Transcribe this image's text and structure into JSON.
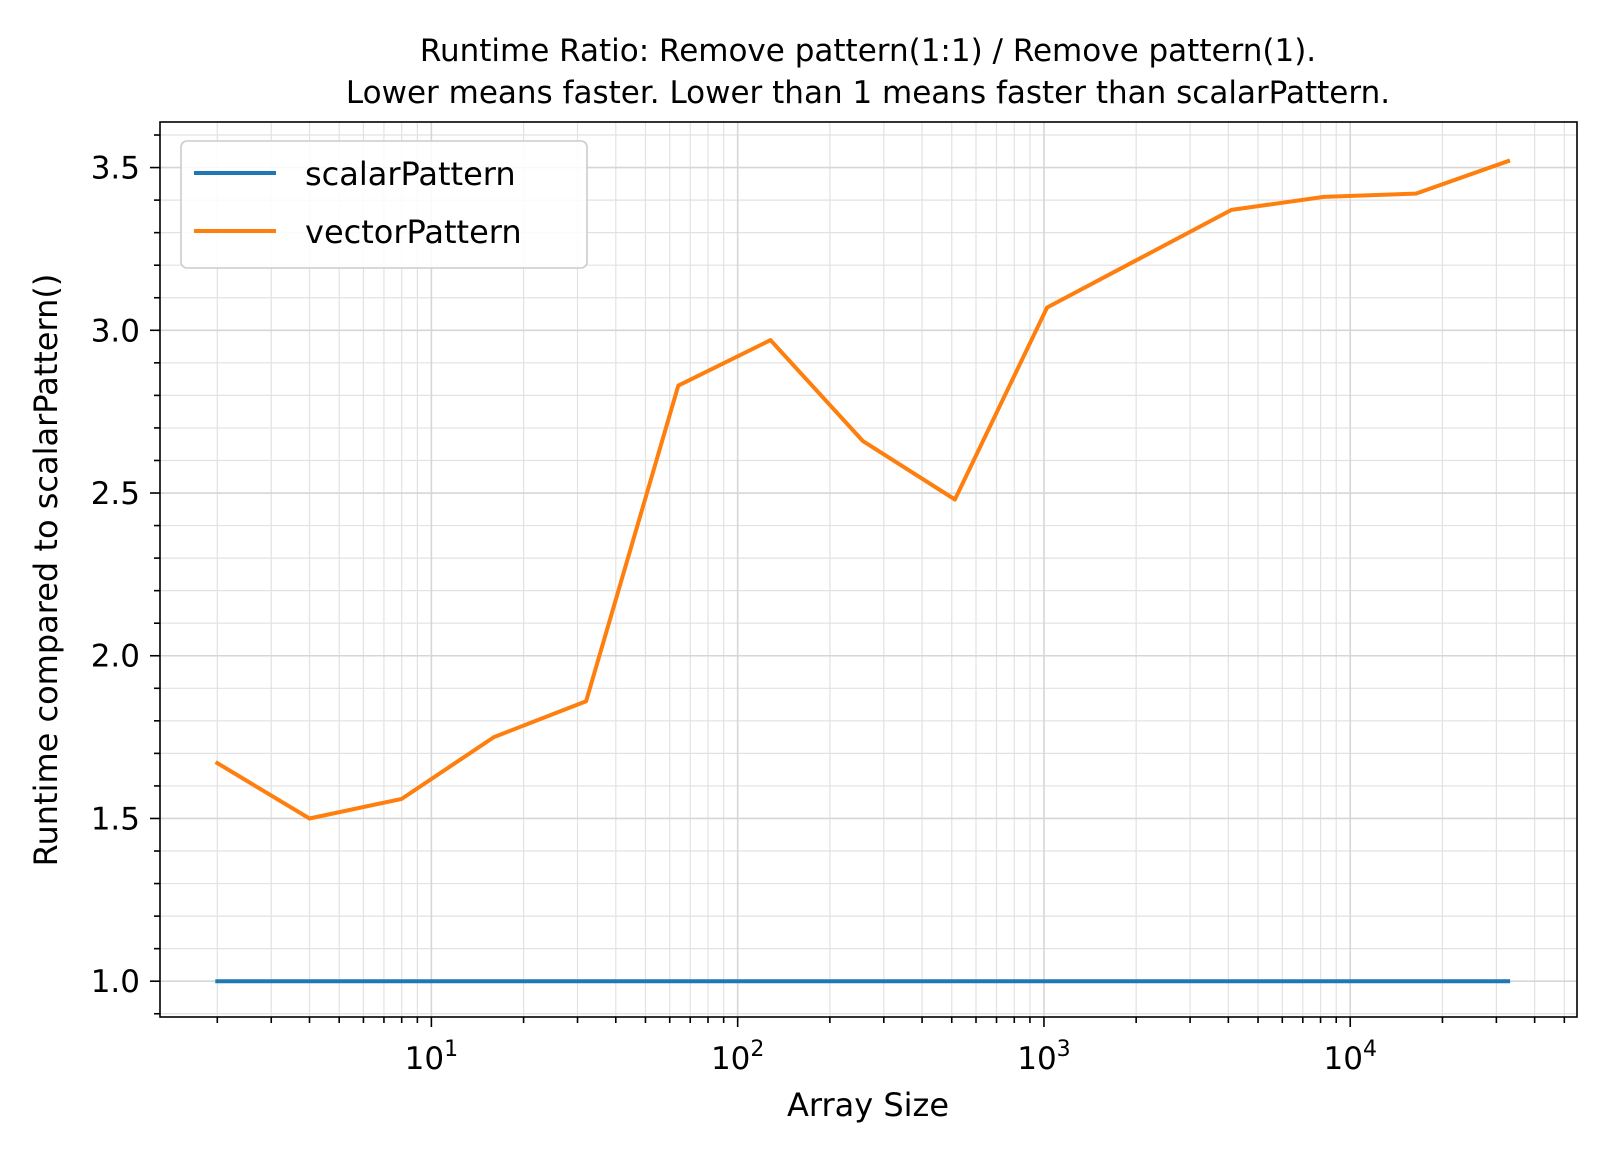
{
  "chart_data": {
    "type": "line",
    "title": [
      "Runtime Ratio: Remove pattern(1:1) / Remove pattern(1).",
      "Lower means faster. Lower than 1 means faster than scalarPattern."
    ],
    "xlabel": "Array Size",
    "ylabel": "Runtime compared to scalarPattern()",
    "xscale": "log",
    "xlim": [
      1.3,
      55000
    ],
    "ylim": [
      0.89,
      3.64
    ],
    "x_ticks": [
      {
        "value": 10,
        "base": "10",
        "exp": "1"
      },
      {
        "value": 100,
        "base": "10",
        "exp": "2"
      },
      {
        "value": 1000,
        "base": "10",
        "exp": "3"
      },
      {
        "value": 10000,
        "base": "10",
        "exp": "4"
      }
    ],
    "y_ticks": [
      {
        "value": 1.0,
        "label": "1.0"
      },
      {
        "value": 1.5,
        "label": "1.5"
      },
      {
        "value": 2.0,
        "label": "2.0"
      },
      {
        "value": 2.5,
        "label": "2.5"
      },
      {
        "value": 3.0,
        "label": "3.0"
      },
      {
        "value": 3.5,
        "label": "3.5"
      }
    ],
    "grid": true,
    "legend_position": "top-left",
    "x": [
      2,
      4,
      8,
      16,
      32,
      64,
      128,
      256,
      512,
      1024,
      2048,
      4096,
      8192,
      16384,
      32768
    ],
    "series": [
      {
        "name": "scalarPattern",
        "color": "#1f77b4",
        "values": [
          1,
          1,
          1,
          1,
          1,
          1,
          1,
          1,
          1,
          1,
          1,
          1,
          1,
          1,
          1
        ]
      },
      {
        "name": "vectorPattern",
        "color": "#ff7f0e",
        "values": [
          1.67,
          1.5,
          1.56,
          1.75,
          1.86,
          2.83,
          2.97,
          2.66,
          2.48,
          3.07,
          3.22,
          3.37,
          3.41,
          3.42,
          3.52
        ]
      }
    ]
  }
}
